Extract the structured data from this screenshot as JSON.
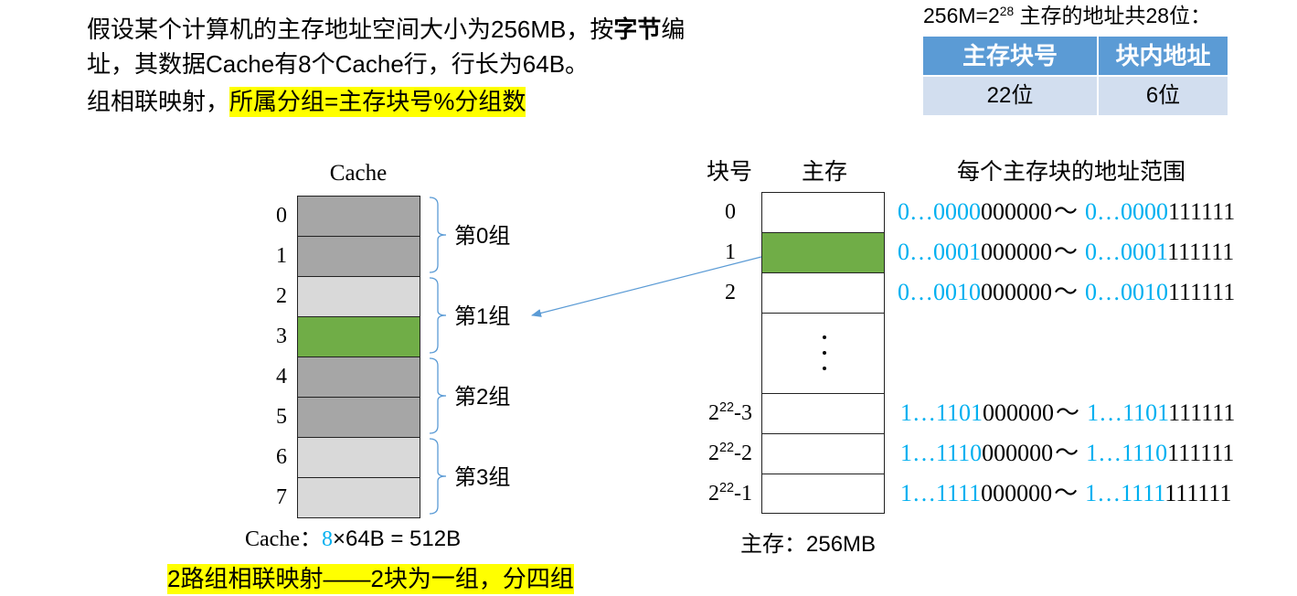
{
  "problem": {
    "line1_a": "假设某个计算机的主存地址空间大小为256MB，按",
    "line1_bold": "字节",
    "line1_b": "编",
    "line2": "址，其数据Cache有8个Cache行，行长为64B。",
    "line3_a": "组相联映射，",
    "line3_highlight": "所属分组=主存块号%分组数"
  },
  "address": {
    "caption_a": "256M=2",
    "caption_sup": "28",
    "caption_b": " 主存的地址共28位：",
    "headers": [
      "主存块号",
      "块内地址"
    ],
    "values": [
      "22位",
      "6位"
    ],
    "header_fill": "#5b9bd5",
    "row_fill": "#d2deef"
  },
  "cache": {
    "title": "Cache",
    "lines": [
      {
        "index": "0",
        "fill": "#a6a6a6"
      },
      {
        "index": "1",
        "fill": "#a6a6a6"
      },
      {
        "index": "2",
        "fill": "#d9d9d9"
      },
      {
        "index": "3",
        "fill": "#70ad47"
      },
      {
        "index": "4",
        "fill": "#a6a6a6"
      },
      {
        "index": "5",
        "fill": "#a6a6a6"
      },
      {
        "index": "6",
        "fill": "#d9d9d9"
      },
      {
        "index": "7",
        "fill": "#d9d9d9"
      }
    ],
    "groups": [
      "第0组",
      "第1组",
      "第2组",
      "第3组"
    ],
    "summary_label": "Cache：",
    "summary_count": "8",
    "summary_rest": "×64B = 512B",
    "note": "2路组相联映射——2块为一组，分四组"
  },
  "memory": {
    "col_block": "块号",
    "col_memory": "主存",
    "col_range": "每个主存块的地址范围",
    "range_separator": "～",
    "gap_icon": "vertical-ellipsis-icon",
    "blocks": [
      {
        "number": {
          "base": "0"
        },
        "fill": "#ffffff",
        "range": {
          "start_prefix": "0…0000",
          "start_suffix": "000000",
          "end_prefix": "0…0000",
          "end_suffix": "111111"
        }
      },
      {
        "number": {
          "base": "1"
        },
        "fill": "#70ad47",
        "range": {
          "start_prefix": "0…0001",
          "start_suffix": "000000",
          "end_prefix": "0…0001",
          "end_suffix": "111111"
        }
      },
      {
        "number": {
          "base": "2"
        },
        "fill": "#ffffff",
        "range": {
          "start_prefix": "0…0010",
          "start_suffix": "000000",
          "end_prefix": "0…0010",
          "end_suffix": "111111"
        }
      },
      {
        "number": {
          "base": "2",
          "sup": "22",
          "suffix": "-3"
        },
        "fill": "#ffffff",
        "range": {
          "start_prefix": "1…1101",
          "start_suffix": "000000",
          "end_prefix": "1…1101",
          "end_suffix": "111111"
        }
      },
      {
        "number": {
          "base": "2",
          "sup": "22",
          "suffix": "-2"
        },
        "fill": "#ffffff",
        "range": {
          "start_prefix": "1…1110",
          "start_suffix": "000000",
          "end_prefix": "1…1110",
          "end_suffix": "111111"
        }
      },
      {
        "number": {
          "base": "2",
          "sup": "22",
          "suffix": "-1"
        },
        "fill": "#ffffff",
        "range": {
          "start_prefix": "1…1111",
          "start_suffix": "000000",
          "end_prefix": "1…1111",
          "end_suffix": "111111"
        }
      }
    ],
    "summary_label": "主存：",
    "summary_size": "256MB"
  },
  "colors": {
    "highlight": "#ffff00",
    "accent": "#00b0f0",
    "brace": "#5b9bd5",
    "arrow": "#5b9bd5"
  }
}
